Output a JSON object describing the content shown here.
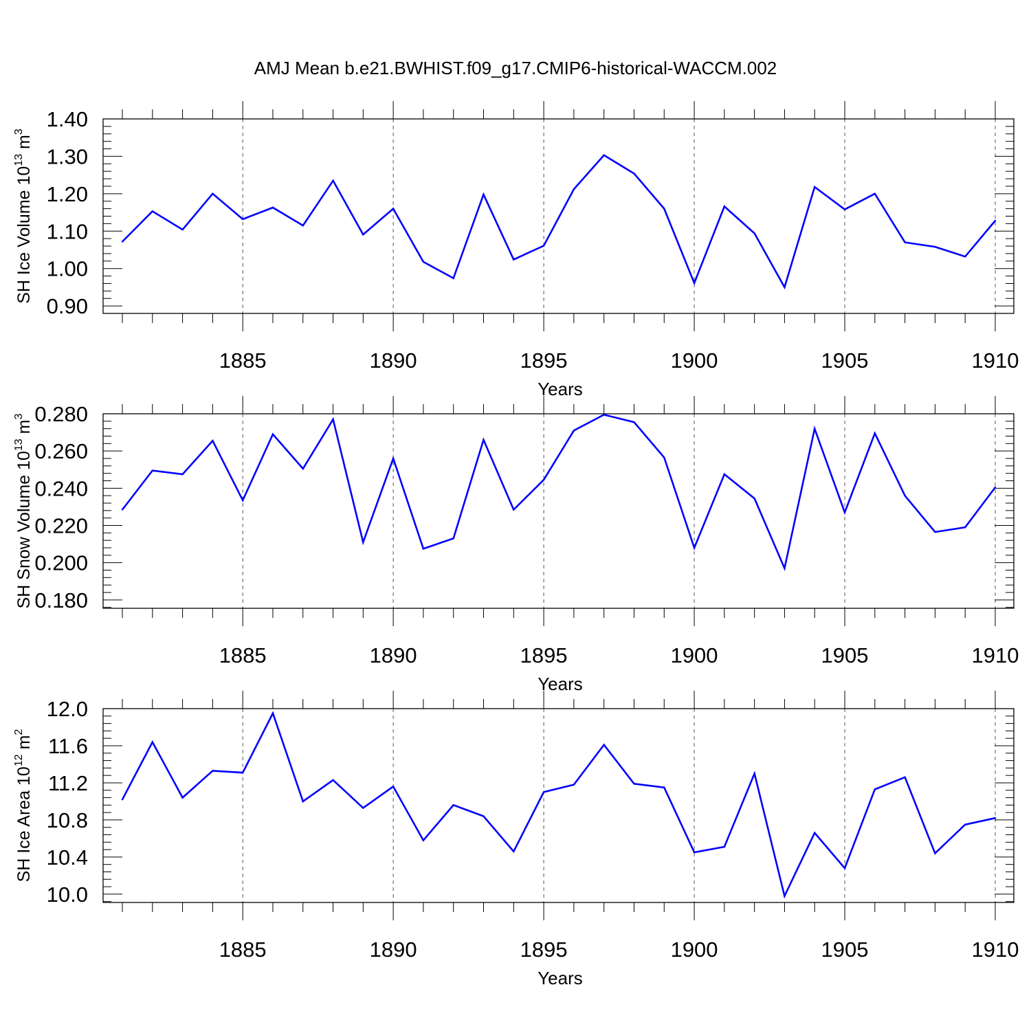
{
  "title": "AMJ Mean b.e21.BWHIST.f09_g17.CMIP6-historical-WACCM.002",
  "colors": {
    "line": "#0000ff",
    "axis": "#000000",
    "grid": "#555555"
  },
  "chart_data": [
    {
      "type": "line",
      "ylabel_main": "SH Ice Volume 10",
      "ylabel_exp": "13",
      "ylabel_unit": " m",
      "ylabel_unit_exp": "3",
      "xlabel": "Years",
      "xlim": [
        1881,
        1910
      ],
      "ylim": [
        0.88,
        1.4
      ],
      "yticks": [
        0.9,
        1.0,
        1.1,
        1.2,
        1.3,
        1.4
      ],
      "ytick_labels": [
        "0.90",
        "1.00",
        "1.10",
        "1.20",
        "1.30",
        "1.40"
      ],
      "xticks": [
        1885,
        1890,
        1895,
        1900,
        1905,
        1910
      ],
      "xtick_labels": [
        "1885",
        "1890",
        "1895",
        "1900",
        "1905",
        "1910"
      ],
      "x": [
        1881,
        1882,
        1883,
        1884,
        1885,
        1886,
        1887,
        1888,
        1889,
        1890,
        1891,
        1892,
        1893,
        1894,
        1895,
        1896,
        1897,
        1898,
        1899,
        1900,
        1901,
        1902,
        1903,
        1904,
        1905,
        1906,
        1907,
        1908,
        1909,
        1910
      ],
      "values": [
        1.072,
        1.153,
        1.104,
        1.2,
        1.132,
        1.163,
        1.115,
        1.235,
        1.091,
        1.16,
        1.018,
        0.974,
        1.198,
        1.024,
        1.061,
        1.212,
        1.303,
        1.254,
        1.16,
        0.961,
        1.166,
        1.094,
        0.95,
        1.218,
        1.158,
        1.2,
        1.07,
        1.058,
        1.032,
        1.128
      ]
    },
    {
      "type": "line",
      "ylabel_main": "SH Snow Volume 10",
      "ylabel_exp": "13",
      "ylabel_unit": " m",
      "ylabel_unit_exp": "3",
      "xlabel": "Years",
      "xlim": [
        1881,
        1910
      ],
      "ylim": [
        0.1755,
        0.28
      ],
      "yticks": [
        0.18,
        0.2,
        0.22,
        0.24,
        0.26,
        0.28
      ],
      "ytick_labels": [
        "0.180",
        "0.200",
        "0.220",
        "0.240",
        "0.260",
        "0.280"
      ],
      "xticks": [
        1885,
        1890,
        1895,
        1900,
        1905,
        1910
      ],
      "xtick_labels": [
        "1885",
        "1890",
        "1895",
        "1900",
        "1905",
        "1910"
      ],
      "x": [
        1881,
        1882,
        1883,
        1884,
        1885,
        1886,
        1887,
        1888,
        1889,
        1890,
        1891,
        1892,
        1893,
        1894,
        1895,
        1896,
        1897,
        1898,
        1899,
        1900,
        1901,
        1902,
        1903,
        1904,
        1905,
        1906,
        1907,
        1908,
        1909,
        1910
      ],
      "values": [
        0.2285,
        0.2495,
        0.2475,
        0.2655,
        0.2335,
        0.269,
        0.2505,
        0.277,
        0.211,
        0.256,
        0.2075,
        0.213,
        0.266,
        0.2285,
        0.2445,
        0.271,
        0.2795,
        0.2755,
        0.2565,
        0.208,
        0.2475,
        0.2345,
        0.197,
        0.272,
        0.227,
        0.2695,
        0.236,
        0.2165,
        0.219,
        0.2405
      ]
    },
    {
      "type": "line",
      "ylabel_main": "SH Ice Area 10",
      "ylabel_exp": "12",
      "ylabel_unit": " m",
      "ylabel_unit_exp": "2",
      "xlabel": "Years",
      "xlim": [
        1881,
        1910
      ],
      "ylim": [
        9.91,
        12.0
      ],
      "yticks": [
        10.0,
        10.4,
        10.8,
        11.2,
        11.6,
        12.0
      ],
      "ytick_labels": [
        "10.0",
        "10.4",
        "10.8",
        "11.2",
        "11.6",
        "12.0"
      ],
      "xticks": [
        1885,
        1890,
        1895,
        1900,
        1905,
        1910
      ],
      "xtick_labels": [
        "1885",
        "1890",
        "1895",
        "1900",
        "1905",
        "1910"
      ],
      "x": [
        1881,
        1882,
        1883,
        1884,
        1885,
        1886,
        1887,
        1888,
        1889,
        1890,
        1891,
        1892,
        1893,
        1894,
        1895,
        1896,
        1897,
        1898,
        1899,
        1900,
        1901,
        1902,
        1903,
        1904,
        1905,
        1906,
        1907,
        1908,
        1909,
        1910
      ],
      "values": [
        11.02,
        11.64,
        11.04,
        11.33,
        11.31,
        11.95,
        11.0,
        11.23,
        10.93,
        11.16,
        10.58,
        10.96,
        10.84,
        10.46,
        11.1,
        11.18,
        11.61,
        11.19,
        11.15,
        10.45,
        10.51,
        11.3,
        9.98,
        10.66,
        10.28,
        11.13,
        11.26,
        10.44,
        10.75,
        10.82
      ]
    }
  ]
}
